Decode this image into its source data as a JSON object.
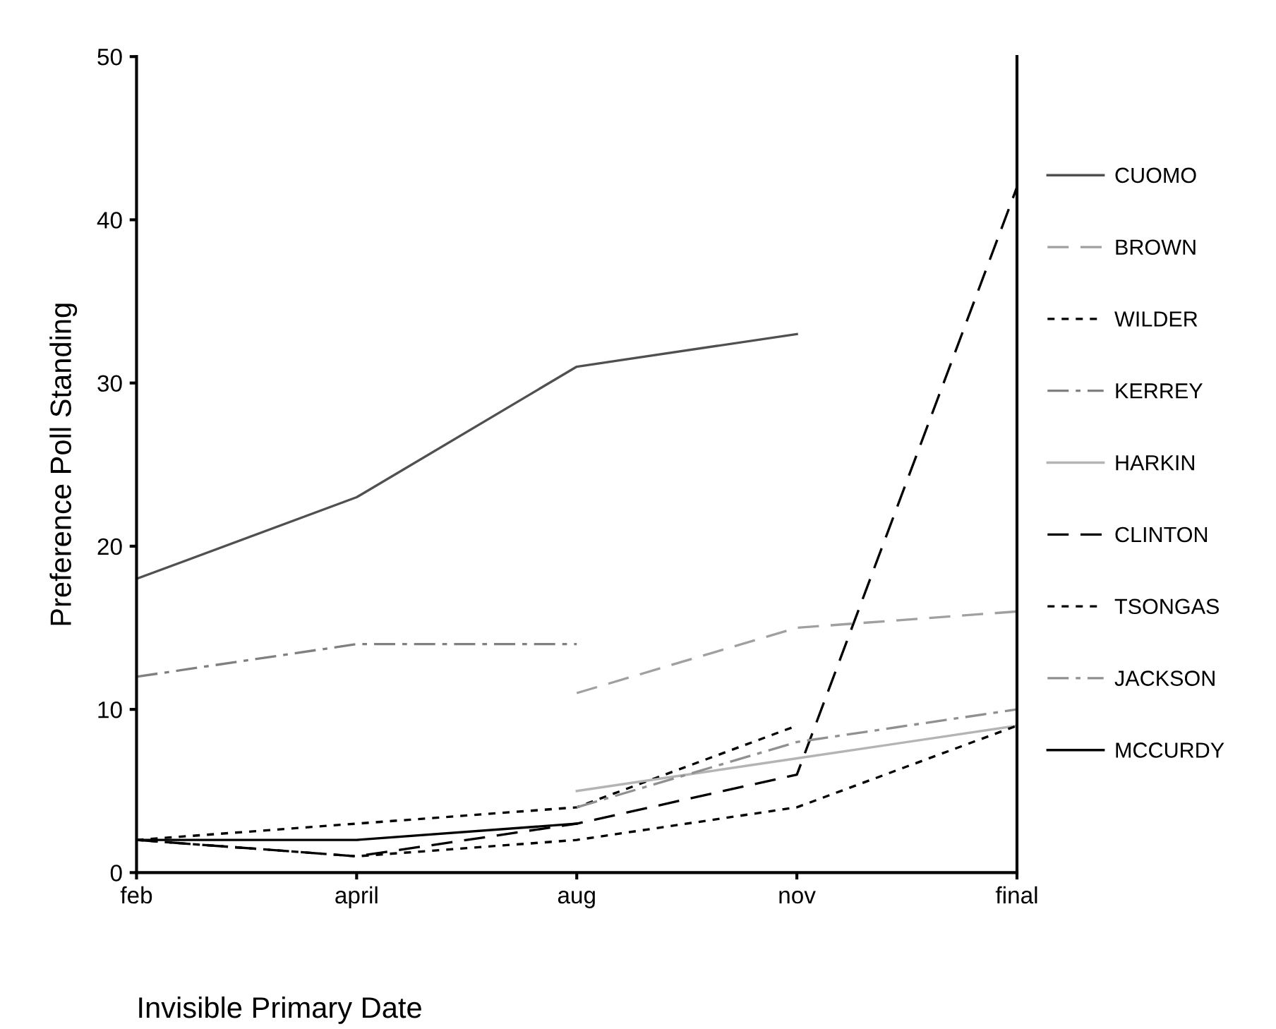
{
  "chart_data": {
    "type": "line",
    "xlabel": "Invisible Primary Date",
    "ylabel": "Preference Poll Standing",
    "categories": [
      "feb",
      "april",
      "aug",
      "nov",
      "final"
    ],
    "ylim": [
      0,
      50
    ],
    "yticks": [
      0,
      10,
      20,
      30,
      40,
      50
    ],
    "grid": false,
    "legend": "right",
    "marker": "none",
    "series": [
      {
        "name": "CUOMO",
        "color": "#505050",
        "line_style": "solid",
        "values": [
          18,
          23,
          31,
          33,
          null
        ]
      },
      {
        "name": "BROWN",
        "color": "#a0a0a0",
        "line_style": "dashed",
        "values": [
          null,
          null,
          11,
          15,
          16
        ]
      },
      {
        "name": "WILDER",
        "color": "#000000",
        "line_style": "dotted",
        "values": [
          2,
          3,
          4,
          9,
          null
        ]
      },
      {
        "name": "KERREY",
        "color": "#808080",
        "line_style": "dashdot",
        "values": [
          12,
          14,
          14,
          null,
          null
        ]
      },
      {
        "name": "HARKIN",
        "color": "#b4b4b4",
        "line_style": "solid",
        "values": [
          null,
          null,
          5,
          7,
          9
        ]
      },
      {
        "name": "CLINTON",
        "color": "#000000",
        "line_style": "dashed",
        "values": [
          2,
          1,
          3,
          6,
          42
        ]
      },
      {
        "name": "TSONGAS",
        "color": "#000000",
        "line_style": "dotted",
        "values": [
          2,
          1,
          2,
          4,
          9
        ]
      },
      {
        "name": "JACKSON",
        "color": "#909090",
        "line_style": "dashdot",
        "values": [
          null,
          null,
          4,
          8,
          10
        ]
      },
      {
        "name": "MCCURDY",
        "color": "#000000",
        "line_style": "solid",
        "values": [
          2,
          2,
          3,
          null,
          null
        ]
      }
    ]
  }
}
